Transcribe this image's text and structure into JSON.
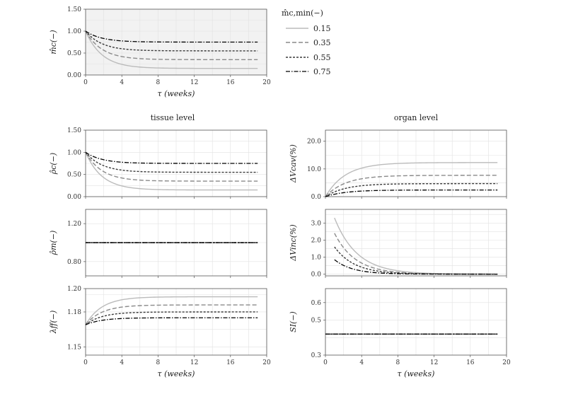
{
  "figure": {
    "column_titles": {
      "left": "tissue level",
      "right": "organ level"
    },
    "legend": {
      "title": "m̂c,min(−)",
      "entries": [
        {
          "label": "0.15",
          "color": "#bbbbbb",
          "dash": "solid"
        },
        {
          "label": "0.35",
          "color": "#8a8a8a",
          "dash": "dashed"
        },
        {
          "label": "0.55",
          "color": "#3a3a3a",
          "dash": "dotted"
        },
        {
          "label": "0.75",
          "color": "#000000",
          "dash": "dashdot"
        }
      ]
    }
  },
  "chart_data": [
    {
      "id": "top",
      "type": "line",
      "ylabel": "m̂c(−)",
      "xlabel": "τ (weeks)",
      "xlim": [
        0,
        20
      ],
      "ylim": [
        0.0,
        1.5
      ],
      "xticks": [
        0,
        4,
        8,
        12,
        16,
        20
      ],
      "xtick_labels": [
        "0",
        "4",
        "8",
        "12",
        "16",
        "20"
      ],
      "yticks": [
        0.0,
        0.5,
        1.0,
        1.5
      ],
      "ytick_labels": [
        "0.00",
        "0.50",
        "1.00",
        "1.50"
      ],
      "shaded": true,
      "x_start": 0,
      "x_end": 19,
      "series": [
        {
          "name": "0.15",
          "form": "exp_down",
          "start": 1.0,
          "end": 0.15,
          "tau": 1.8
        },
        {
          "name": "0.35",
          "form": "exp_down",
          "start": 1.0,
          "end": 0.35,
          "tau": 1.8
        },
        {
          "name": "0.55",
          "form": "exp_down",
          "start": 1.0,
          "end": 0.55,
          "tau": 1.8
        },
        {
          "name": "0.75",
          "form": "exp_down",
          "start": 1.0,
          "end": 0.75,
          "tau": 1.8
        }
      ]
    },
    {
      "id": "rho_c",
      "type": "line",
      "ylabel": "ρ̂c(−)",
      "xlabel": "",
      "xlim": [
        0,
        20
      ],
      "ylim": [
        0.0,
        1.5
      ],
      "xticks": [
        0,
        4,
        8,
        12,
        16,
        20
      ],
      "xtick_labels": [
        "",
        "",
        "",
        "",
        "",
        ""
      ],
      "yticks": [
        0.0,
        0.5,
        1.0,
        1.5
      ],
      "ytick_labels": [
        "0.00",
        "0.50",
        "1.00",
        "1.50"
      ],
      "x_start": 0,
      "x_end": 19,
      "series": [
        {
          "name": "0.15",
          "form": "exp_down",
          "start": 1.0,
          "end": 0.15,
          "tau": 1.8
        },
        {
          "name": "0.35",
          "form": "exp_down",
          "start": 1.0,
          "end": 0.35,
          "tau": 1.8
        },
        {
          "name": "0.55",
          "form": "exp_down",
          "start": 1.0,
          "end": 0.55,
          "tau": 1.8
        },
        {
          "name": "0.75",
          "form": "exp_down",
          "start": 1.0,
          "end": 0.75,
          "tau": 1.8
        }
      ]
    },
    {
      "id": "rho_m",
      "type": "line",
      "ylabel": "ρ̂m(−)",
      "xlabel": "",
      "xlim": [
        0,
        20
      ],
      "ylim": [
        0.65,
        1.35
      ],
      "xticks": [
        0,
        4,
        8,
        12,
        16,
        20
      ],
      "xtick_labels": [
        "",
        "",
        "",
        "",
        "",
        ""
      ],
      "yticks": [
        0.8,
        1.2
      ],
      "ytick_labels": [
        "0.80",
        "1.20"
      ],
      "x_start": 0,
      "x_end": 19,
      "series": [
        {
          "name": "0.15",
          "form": "const",
          "start": 1.0,
          "end": 1.0,
          "tau": 1
        },
        {
          "name": "0.35",
          "form": "const",
          "start": 1.0,
          "end": 1.0,
          "tau": 1
        },
        {
          "name": "0.55",
          "form": "const",
          "start": 1.0,
          "end": 1.0,
          "tau": 1
        },
        {
          "name": "0.75",
          "form": "const",
          "start": 1.0,
          "end": 1.0,
          "tau": 1
        }
      ]
    },
    {
      "id": "lambda",
      "type": "line",
      "ylabel": "λff(−)",
      "xlabel": "τ (weeks)",
      "xlim": [
        0,
        20
      ],
      "ylim": [
        1.143,
        1.2
      ],
      "xticks": [
        0,
        4,
        8,
        12,
        16,
        20
      ],
      "xtick_labels": [
        "0",
        "4",
        "8",
        "12",
        "16",
        "20"
      ],
      "yticks": [
        1.15,
        1.18,
        1.2
      ],
      "ytick_labels": [
        "1.15",
        "1.18",
        "1.20"
      ],
      "x_start": 0,
      "x_end": 19,
      "series": [
        {
          "name": "0.15",
          "form": "exp_up",
          "start": 1.169,
          "end": 1.193,
          "tau": 1.8
        },
        {
          "name": "0.35",
          "form": "exp_up",
          "start": 1.169,
          "end": 1.186,
          "tau": 1.8
        },
        {
          "name": "0.55",
          "form": "exp_up",
          "start": 1.169,
          "end": 1.18,
          "tau": 1.8
        },
        {
          "name": "0.75",
          "form": "exp_up",
          "start": 1.169,
          "end": 1.175,
          "tau": 1.8
        }
      ]
    },
    {
      "id": "dV_cav",
      "type": "line",
      "ylabel": "ΔVcav(%)",
      "xlabel": "",
      "xlim": [
        0,
        20
      ],
      "ylim": [
        0,
        24
      ],
      "xticks": [
        0,
        4,
        8,
        12,
        16,
        20
      ],
      "xtick_labels": [
        "",
        "",
        "",
        "",
        "",
        ""
      ],
      "yticks": [
        0,
        10,
        20
      ],
      "ytick_labels": [
        "0.0",
        "10.0",
        "20.0"
      ],
      "x_start": 0,
      "x_end": 19,
      "series": [
        {
          "name": "0.15",
          "form": "exp_up",
          "start": 0.0,
          "end": 12.3,
          "tau": 2.2
        },
        {
          "name": "0.35",
          "form": "exp_up",
          "start": 0.0,
          "end": 7.7,
          "tau": 2.2
        },
        {
          "name": "0.55",
          "form": "exp_up",
          "start": 0.0,
          "end": 4.7,
          "tau": 2.2
        },
        {
          "name": "0.75",
          "form": "exp_up",
          "start": 0.0,
          "end": 2.4,
          "tau": 2.2
        }
      ]
    },
    {
      "id": "dV_inc",
      "type": "line",
      "ylabel": "ΔVinc(%)",
      "xlabel": "",
      "xlim": [
        0,
        20
      ],
      "ylim": [
        -0.1,
        3.8
      ],
      "xticks": [
        0,
        4,
        8,
        12,
        16,
        20
      ],
      "xtick_labels": [
        "",
        "",
        "",
        "",
        "",
        ""
      ],
      "yticks": [
        0,
        1,
        2,
        3
      ],
      "ytick_labels": [
        "0.0",
        "1.0",
        "2.0",
        "3.0"
      ],
      "x_start": 1,
      "x_end": 19,
      "series": [
        {
          "name": "0.15",
          "form": "decay",
          "start": 3.3,
          "end": 0.0,
          "tau": 2.5
        },
        {
          "name": "0.35",
          "form": "decay",
          "start": 2.4,
          "end": 0.0,
          "tau": 2.3
        },
        {
          "name": "0.55",
          "form": "decay",
          "start": 1.6,
          "end": 0.0,
          "tau": 2.2
        },
        {
          "name": "0.75",
          "form": "decay",
          "start": 0.85,
          "end": 0.0,
          "tau": 2.0
        }
      ]
    },
    {
      "id": "SI",
      "type": "line",
      "ylabel": "SI(−)",
      "xlabel": "τ (weeks)",
      "xlim": [
        0,
        20
      ],
      "ylim": [
        0.3,
        0.68
      ],
      "xticks": [
        0,
        4,
        8,
        12,
        16,
        20
      ],
      "xtick_labels": [
        "0",
        "4",
        "8",
        "12",
        "16",
        "20"
      ],
      "yticks": [
        0.3,
        0.5,
        0.6
      ],
      "ytick_labels": [
        "0.3",
        "0.5",
        "0.6"
      ],
      "x_start": 0,
      "x_end": 19,
      "series": [
        {
          "name": "0.15",
          "form": "const",
          "start": 0.42,
          "end": 0.42,
          "tau": 1
        },
        {
          "name": "0.35",
          "form": "const",
          "start": 0.42,
          "end": 0.42,
          "tau": 1
        },
        {
          "name": "0.55",
          "form": "const",
          "start": 0.42,
          "end": 0.42,
          "tau": 1
        },
        {
          "name": "0.75",
          "form": "const",
          "start": 0.42,
          "end": 0.42,
          "tau": 1
        }
      ]
    }
  ]
}
